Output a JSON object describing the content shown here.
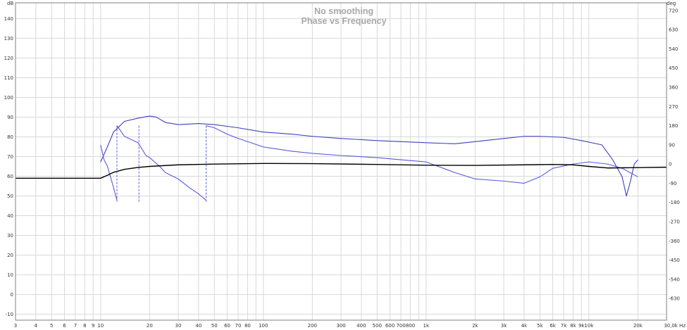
{
  "chart_data": {
    "type": "line",
    "title": "No smoothing",
    "subtitle": "Phase vs Frequency",
    "xscale": "log",
    "xlim": [
      3,
      30000
    ],
    "x_ticks": [
      {
        "v": 3,
        "label": "3"
      },
      {
        "v": 4,
        "label": "4"
      },
      {
        "v": 5,
        "label": "5"
      },
      {
        "v": 6,
        "label": "6"
      },
      {
        "v": 7,
        "label": "7"
      },
      {
        "v": 8,
        "label": "8"
      },
      {
        "v": 9,
        "label": "9"
      },
      {
        "v": 10,
        "label": "10"
      },
      {
        "v": 20,
        "label": "20"
      },
      {
        "v": 30,
        "label": "30"
      },
      {
        "v": 40,
        "label": "40"
      },
      {
        "v": 50,
        "label": "50"
      },
      {
        "v": 60,
        "label": "60"
      },
      {
        "v": 70,
        "label": "70"
      },
      {
        "v": 80,
        "label": "80"
      },
      {
        "v": 100,
        "label": "100"
      },
      {
        "v": 200,
        "label": "200"
      },
      {
        "v": 300,
        "label": "300"
      },
      {
        "v": 400,
        "label": "400"
      },
      {
        "v": 500,
        "label": "500"
      },
      {
        "v": 600,
        "label": "600"
      },
      {
        "v": 700,
        "label": "700"
      },
      {
        "v": 800,
        "label": "800"
      },
      {
        "v": 1000,
        "label": "1k"
      },
      {
        "v": 2000,
        "label": "2k"
      },
      {
        "v": 3000,
        "label": "3k"
      },
      {
        "v": 4000,
        "label": "4k"
      },
      {
        "v": 5000,
        "label": "5k"
      },
      {
        "v": 6000,
        "label": "6k"
      },
      {
        "v": 7000,
        "label": "7k"
      },
      {
        "v": 8000,
        "label": "8k"
      },
      {
        "v": 9000,
        "label": "9k"
      },
      {
        "v": 10000,
        "label": "10k"
      },
      {
        "v": 20000,
        "label": "20k"
      },
      {
        "v": 30000,
        "label": "30,0k Hz"
      }
    ],
    "x_minor_ticks": [
      90,
      900,
      90000
    ],
    "y_left": {
      "unit": "dB",
      "ylim": [
        -13,
        148
      ],
      "ticks": [
        140,
        130,
        120,
        110,
        100,
        90,
        80,
        70,
        60,
        50,
        40,
        30,
        20,
        10,
        0,
        -10
      ]
    },
    "y_right": {
      "unit": "deg",
      "ylim": [
        -732,
        756
      ],
      "ticks": [
        720,
        630,
        540,
        450,
        360,
        270,
        180,
        90,
        0,
        -90,
        -180,
        -270,
        -360,
        -450,
        -540,
        -630
      ]
    },
    "grid": true,
    "series": [
      {
        "axis": "left",
        "color": "#000000",
        "points": [
          [
            3,
            59
          ],
          [
            10,
            59
          ],
          [
            11,
            60.5
          ],
          [
            12,
            62
          ],
          [
            14,
            63.5
          ],
          [
            17,
            64.5
          ],
          [
            20,
            65
          ],
          [
            30,
            65.8
          ],
          [
            50,
            66.2
          ],
          [
            100,
            66.5
          ],
          [
            200,
            66.4
          ],
          [
            500,
            66
          ],
          [
            1000,
            65.6
          ],
          [
            2000,
            65.5
          ],
          [
            4000,
            65.8
          ],
          [
            6000,
            66
          ],
          [
            8000,
            65.8
          ],
          [
            10000,
            65
          ],
          [
            13000,
            64.2
          ],
          [
            20000,
            64.4
          ],
          [
            30000,
            64.6
          ]
        ]
      },
      {
        "axis": "right",
        "color": "#3f3fbf",
        "points": [
          [
            10,
            10
          ],
          [
            11,
            80
          ],
          [
            12,
            150
          ],
          [
            14,
            200
          ],
          [
            17,
            215
          ],
          [
            20,
            225
          ],
          [
            22,
            220
          ],
          [
            25,
            195
          ],
          [
            30,
            185
          ],
          [
            40,
            190
          ],
          [
            50,
            185
          ],
          [
            70,
            170
          ],
          [
            100,
            150
          ],
          [
            150,
            140
          ],
          [
            200,
            130
          ],
          [
            300,
            120
          ],
          [
            500,
            110
          ],
          [
            700,
            105
          ],
          [
            1000,
            100
          ],
          [
            1500,
            95
          ],
          [
            2000,
            105
          ],
          [
            3000,
            120
          ],
          [
            4000,
            130
          ],
          [
            5000,
            130
          ],
          [
            7000,
            125
          ],
          [
            9000,
            110
          ],
          [
            12000,
            90
          ],
          [
            14000,
            20
          ],
          [
            16000,
            -60
          ],
          [
            17000,
            -150
          ],
          [
            18000,
            -80
          ],
          [
            19000,
            0
          ],
          [
            20000,
            20
          ]
        ]
      },
      {
        "axis": "right",
        "color": "#5a5adc",
        "points": [
          [
            10,
            90
          ],
          [
            10.5,
            20
          ],
          [
            11,
            -10
          ],
          [
            11.5,
            -60
          ],
          [
            12,
            -110
          ],
          [
            12.6,
            -170
          ],
          [
            12.61,
            180
          ],
          [
            14,
            130
          ],
          [
            17,
            100
          ],
          [
            19,
            40
          ],
          [
            20,
            30
          ],
          [
            23,
            -10
          ],
          [
            25,
            -40
          ],
          [
            30,
            -70
          ],
          [
            35,
            -110
          ],
          [
            40,
            -140
          ],
          [
            44.5,
            -170
          ],
          [
            44.51,
            180
          ],
          [
            50,
            170
          ],
          [
            60,
            140
          ],
          [
            70,
            120
          ],
          [
            100,
            80
          ],
          [
            150,
            60
          ],
          [
            200,
            50
          ],
          [
            300,
            40
          ],
          [
            500,
            30
          ],
          [
            700,
            20
          ],
          [
            1000,
            10
          ],
          [
            1500,
            -40
          ],
          [
            2000,
            -70
          ],
          [
            3000,
            -80
          ],
          [
            4000,
            -90
          ],
          [
            5000,
            -60
          ],
          [
            6000,
            -20
          ],
          [
            8000,
            0
          ],
          [
            10000,
            10
          ],
          [
            13000,
            0
          ],
          [
            16000,
            -20
          ],
          [
            20000,
            -60
          ]
        ]
      }
    ],
    "phase_wrap_lines": [
      {
        "x": 12.6,
        "from": 180,
        "to": -180
      },
      {
        "x": 17.2,
        "from": 180,
        "to": -180
      },
      {
        "x": 44.5,
        "from": 180,
        "to": -180
      }
    ]
  }
}
